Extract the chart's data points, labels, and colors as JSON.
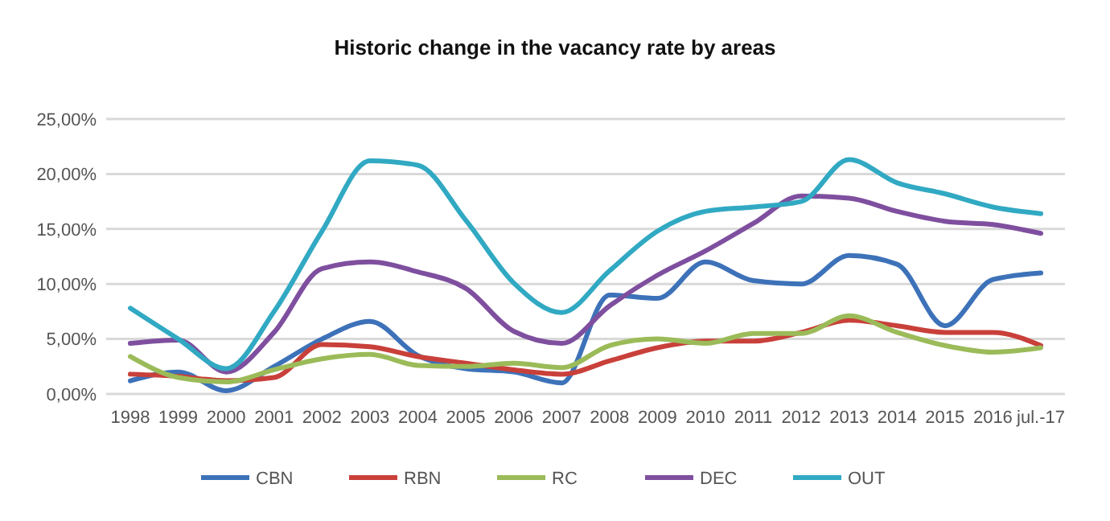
{
  "chart_data": {
    "type": "line",
    "title": "Historic change in the vacancy rate by areas",
    "categories": [
      "1998",
      "1999",
      "2000",
      "2001",
      "2002",
      "2003",
      "2004",
      "2005",
      "2006",
      "2007",
      "2008",
      "2009",
      "2010",
      "2011",
      "2012",
      "2013",
      "2014",
      "2015",
      "2016",
      "jul.-17"
    ],
    "series": [
      {
        "name": "CBN",
        "color": "#3d72b9",
        "values": [
          1.2,
          2.0,
          0.3,
          2.5,
          5.0,
          6.6,
          3.5,
          2.3,
          2.0,
          1.0,
          9.0,
          8.7,
          12.0,
          10.3,
          10.0,
          12.6,
          11.8,
          6.2,
          10.4,
          11.0
        ]
      },
      {
        "name": "RBN",
        "color": "#c9403a",
        "values": [
          1.8,
          1.6,
          1.2,
          1.5,
          4.5,
          4.3,
          3.4,
          2.8,
          2.2,
          1.8,
          3.0,
          4.2,
          4.8,
          4.8,
          5.6,
          6.7,
          6.2,
          5.6,
          5.6,
          4.4
        ]
      },
      {
        "name": "RC",
        "color": "#9bbb59",
        "values": [
          3.4,
          1.5,
          1.1,
          2.2,
          3.2,
          3.6,
          2.6,
          2.5,
          2.8,
          2.4,
          4.4,
          5.0,
          4.6,
          5.5,
          5.5,
          7.1,
          5.6,
          4.4,
          3.8,
          4.2
        ]
      },
      {
        "name": "DEC",
        "color": "#7f4f9f",
        "values": [
          4.6,
          4.9,
          2.0,
          5.6,
          11.4,
          12.0,
          11.1,
          9.6,
          5.7,
          4.6,
          8.0,
          10.8,
          13.0,
          15.5,
          18.0,
          17.8,
          16.6,
          15.7,
          15.4,
          14.6
        ]
      },
      {
        "name": "OUT",
        "color": "#31a9c3",
        "values": [
          7.8,
          5.0,
          2.3,
          7.5,
          14.8,
          21.2,
          20.8,
          15.8,
          10.1,
          7.4,
          11.2,
          14.8,
          16.6,
          17.0,
          17.5,
          21.3,
          19.2,
          18.2,
          17.0,
          16.4
        ]
      }
    ],
    "ylim": [
      0,
      25
    ],
    "yticks": [
      {
        "value": 0,
        "label": "0,00%"
      },
      {
        "value": 5,
        "label": "5,00%"
      },
      {
        "value": 10,
        "label": "10,00%"
      },
      {
        "value": 15,
        "label": "15,00%"
      },
      {
        "value": 20,
        "label": "20,00%"
      },
      {
        "value": 25,
        "label": "25,00%"
      }
    ],
    "grid": "y",
    "legend": "bottom",
    "marker": "none",
    "line_style": "solid"
  }
}
